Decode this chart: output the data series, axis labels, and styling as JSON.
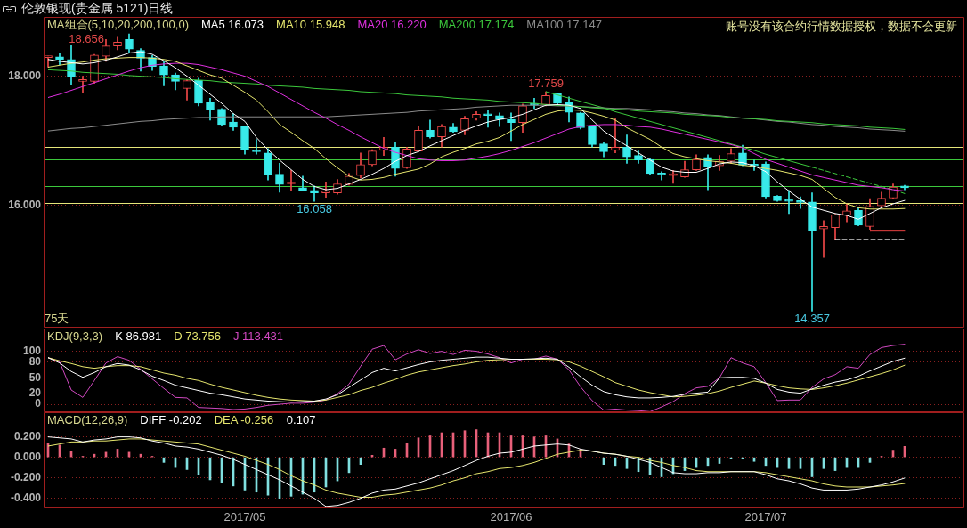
{
  "chart_data": [
    {
      "type": "candlestick",
      "title": "伦敦银现(贵金属 5121)日线",
      "legend_title": "MA组合(5,10,20,200,100,0)",
      "legend": "top left",
      "categories": [
        null,
        null,
        null,
        null,
        null,
        null,
        null,
        null,
        null,
        null,
        null,
        null,
        null,
        null,
        null,
        null,
        null,
        "2017/05",
        null,
        null,
        null,
        null,
        null,
        null,
        null,
        null,
        null,
        null,
        null,
        null,
        null,
        null,
        null,
        null,
        null,
        null,
        null,
        null,
        null,
        null,
        "2017/06",
        null,
        null,
        null,
        null,
        null,
        null,
        null,
        null,
        null,
        null,
        null,
        null,
        null,
        null,
        null,
        null,
        null,
        null,
        null,
        null,
        null,
        "2017/07",
        null,
        null,
        null,
        null,
        null,
        null,
        null,
        null,
        null,
        null,
        null,
        null
      ],
      "ohlc": [
        [
          18.29,
          18.31,
          18.14,
          18.3
        ],
        [
          18.3,
          18.35,
          18.18,
          18.26
        ],
        [
          18.26,
          18.48,
          17.87,
          17.99
        ],
        [
          17.92,
          18.0,
          17.75,
          17.93
        ],
        [
          17.92,
          18.34,
          17.89,
          18.33
        ],
        [
          18.31,
          18.57,
          18.23,
          18.47
        ],
        [
          18.47,
          18.62,
          18.41,
          18.53
        ],
        [
          18.57,
          18.656,
          18.37,
          18.42
        ],
        [
          18.4,
          18.43,
          18.08,
          18.28
        ],
        [
          18.29,
          18.32,
          18.09,
          18.15
        ],
        [
          18.16,
          18.23,
          17.85,
          18.02
        ],
        [
          18.02,
          18.05,
          17.79,
          17.92
        ],
        [
          17.81,
          17.95,
          17.63,
          17.93
        ],
        [
          17.94,
          17.97,
          17.54,
          17.58
        ],
        [
          17.6,
          17.66,
          17.32,
          17.48
        ],
        [
          17.49,
          17.5,
          17.24,
          17.25
        ],
        [
          17.29,
          17.42,
          17.16,
          17.21
        ],
        [
          17.22,
          17.23,
          16.79,
          16.86
        ],
        [
          16.85,
          17.02,
          16.79,
          16.83
        ],
        [
          16.81,
          16.88,
          16.39,
          16.47
        ],
        [
          16.48,
          16.65,
          16.2,
          16.32
        ],
        [
          16.33,
          16.54,
          16.22,
          16.34
        ],
        [
          16.27,
          16.45,
          16.22,
          16.23
        ],
        [
          16.23,
          16.3,
          16.058,
          16.19
        ],
        [
          16.19,
          16.36,
          16.12,
          16.2
        ],
        [
          16.19,
          16.4,
          16.17,
          16.33
        ],
        [
          16.32,
          16.49,
          16.31,
          16.45
        ],
        [
          16.46,
          16.81,
          16.42,
          16.63
        ],
        [
          16.63,
          16.86,
          16.61,
          16.84
        ],
        [
          16.85,
          17.05,
          16.77,
          16.9
        ],
        [
          16.9,
          16.97,
          16.45,
          16.57
        ],
        [
          16.58,
          16.9,
          16.57,
          16.87
        ],
        [
          16.84,
          17.22,
          16.83,
          17.16
        ],
        [
          17.16,
          17.32,
          17.04,
          17.06
        ],
        [
          17.06,
          17.25,
          16.9,
          17.22
        ],
        [
          17.21,
          17.27,
          17.13,
          17.14
        ],
        [
          17.16,
          17.38,
          17.09,
          17.34
        ],
        [
          17.35,
          17.45,
          17.32,
          17.41
        ],
        [
          17.41,
          17.48,
          17.21,
          17.39
        ],
        [
          17.39,
          17.43,
          17.22,
          17.33
        ],
        [
          17.33,
          17.43,
          17.0,
          17.28
        ],
        [
          17.28,
          17.57,
          17.13,
          17.54
        ],
        [
          17.56,
          17.66,
          17.5,
          17.55
        ],
        [
          17.56,
          17.759,
          17.54,
          17.7
        ],
        [
          17.73,
          17.74,
          17.57,
          17.58
        ],
        [
          17.59,
          17.68,
          17.29,
          17.44
        ],
        [
          17.43,
          17.44,
          17.18,
          17.2
        ],
        [
          17.22,
          17.23,
          16.9,
          16.94
        ],
        [
          16.95,
          16.98,
          16.75,
          16.83
        ],
        [
          16.85,
          17.34,
          16.81,
          16.9
        ],
        [
          16.9,
          17.09,
          16.65,
          16.75
        ],
        [
          16.77,
          16.84,
          16.65,
          16.7
        ],
        [
          16.71,
          16.72,
          16.47,
          16.49
        ],
        [
          16.48,
          16.52,
          16.39,
          16.47
        ],
        [
          16.46,
          16.54,
          16.34,
          16.47
        ],
        [
          16.44,
          16.68,
          16.43,
          16.55
        ],
        [
          16.55,
          16.78,
          16.54,
          16.71
        ],
        [
          16.74,
          16.78,
          16.24,
          16.6
        ],
        [
          16.61,
          16.77,
          16.54,
          16.68
        ],
        [
          16.68,
          16.88,
          16.65,
          16.8
        ],
        [
          16.81,
          16.93,
          16.61,
          16.62
        ],
        [
          16.63,
          16.7,
          16.54,
          16.61
        ],
        [
          16.64,
          16.67,
          16.11,
          16.13
        ],
        [
          16.14,
          16.15,
          16.06,
          16.07
        ],
        [
          16.07,
          16.23,
          15.87,
          16.06
        ],
        [
          16.07,
          16.13,
          15.95,
          16.04
        ],
        [
          16.05,
          16.19,
          14.357,
          15.61
        ],
        [
          15.63,
          15.76,
          15.19,
          15.67
        ],
        [
          15.65,
          15.86,
          15.47,
          15.85
        ],
        [
          15.84,
          16.02,
          15.74,
          15.91
        ],
        [
          15.92,
          15.97,
          15.68,
          15.69
        ],
        [
          15.67,
          16.1,
          15.625,
          15.98
        ],
        [
          15.99,
          16.2,
          15.97,
          16.11
        ],
        [
          16.11,
          16.33,
          16.1,
          16.28
        ],
        [
          16.3,
          16.31,
          16.24,
          16.27
        ]
      ],
      "colors": [
        "#f04848",
        "#38eaea",
        "#38eaea",
        "#f04848",
        "#f04848",
        "#f04848",
        "#f04848",
        "#38eaea",
        "#38eaea",
        "#38eaea",
        "#38eaea",
        "#38eaea",
        "#f04848",
        "#38eaea",
        "#38eaea",
        "#38eaea",
        "#38eaea",
        "#38eaea",
        "#38eaea",
        "#38eaea",
        "#38eaea",
        "#f04848",
        "#38eaea",
        "#38eaea",
        "#f04848",
        "#f04848",
        "#f04848",
        "#f04848",
        "#f04848",
        "#f04848",
        "#38eaea",
        "#f04848",
        "#f04848",
        "#38eaea",
        "#f04848",
        "#38eaea",
        "#f04848",
        "#f04848",
        "#38eaea",
        "#38eaea",
        "#38eaea",
        "#f04848",
        "#38eaea",
        "#f04848",
        "#38eaea",
        "#38eaea",
        "#38eaea",
        "#38eaea",
        "#38eaea",
        "#f04848",
        "#38eaea",
        "#38eaea",
        "#38eaea",
        "#38eaea",
        "#f04848",
        "#f04848",
        "#f04848",
        "#38eaea",
        "#f04848",
        "#f04848",
        "#38eaea",
        "#38eaea",
        "#38eaea",
        "#38eaea",
        "#38eaea",
        "#38eaea",
        "#38eaea",
        "#f04848",
        "#f04848",
        "#f04848",
        "#38eaea",
        "#f04848",
        "#f04848",
        "#f04848",
        "#38eaea"
      ],
      "series": [
        {
          "type": "line",
          "name": "MA5 16.073",
          "color": "#ffffff",
          "values": [
            18.26,
            18.23,
            18.21,
            18.19,
            18.21,
            18.25,
            18.3,
            18.36,
            18.38,
            18.34,
            18.24,
            18.13,
            18.0,
            17.86,
            17.72,
            17.58,
            17.42,
            17.3,
            17.05,
            16.86,
            16.7,
            16.55,
            16.4,
            16.29,
            16.24,
            16.26,
            16.33,
            16.4,
            16.48,
            16.57,
            16.68,
            16.77,
            16.83,
            16.92,
            17.0,
            17.08,
            17.16,
            17.23,
            17.29,
            17.33,
            17.36,
            17.41,
            17.48,
            17.55,
            17.56,
            17.55,
            17.5,
            17.32,
            17.15,
            17.03,
            16.92,
            16.81,
            16.7,
            16.59,
            16.53,
            16.51,
            16.51,
            16.57,
            16.64,
            16.67,
            16.66,
            16.61,
            16.52,
            16.36,
            16.22,
            16.09,
            15.97,
            15.92,
            15.87,
            15.84,
            15.78,
            15.87,
            15.96,
            16.02,
            16.073
          ]
        },
        {
          "type": "line",
          "name": "MA10 15.948",
          "color": "#e6e66e",
          "values": [
            18.14,
            18.17,
            18.2,
            18.22,
            18.25,
            18.27,
            18.28,
            18.29,
            18.29,
            18.28,
            18.26,
            18.23,
            18.16,
            18.09,
            18.02,
            17.97,
            17.86,
            17.75,
            17.63,
            17.45,
            17.25,
            17.13,
            17.0,
            16.88,
            16.72,
            16.58,
            16.45,
            16.39,
            16.4,
            16.43,
            16.48,
            16.52,
            16.56,
            16.64,
            16.75,
            16.82,
            16.88,
            16.95,
            16.99,
            17.05,
            17.15,
            17.25,
            17.33,
            17.41,
            17.46,
            17.48,
            17.47,
            17.43,
            17.38,
            17.32,
            17.2,
            17.11,
            17.02,
            16.9,
            16.8,
            16.75,
            16.72,
            16.69,
            16.67,
            16.65,
            16.62,
            16.6,
            16.57,
            16.54,
            16.5,
            16.46,
            16.4,
            16.26,
            16.12,
            16.02,
            15.96,
            15.94,
            15.94,
            15.94,
            15.948
          ]
        },
        {
          "type": "line",
          "name": "MA20 16.220",
          "color": "#e030e0",
          "values": [
            17.67,
            17.72,
            17.78,
            17.84,
            17.9,
            17.96,
            18.02,
            18.08,
            18.13,
            18.17,
            18.19,
            18.2,
            18.2,
            18.18,
            18.14,
            18.1,
            18.05,
            18.0,
            17.92,
            17.84,
            17.74,
            17.64,
            17.54,
            17.44,
            17.35,
            17.25,
            17.16,
            17.06,
            16.97,
            16.88,
            16.82,
            16.77,
            16.72,
            16.7,
            16.69,
            16.69,
            16.7,
            16.73,
            16.76,
            16.8,
            16.85,
            16.91,
            16.97,
            17.04,
            17.11,
            17.18,
            17.22,
            17.24,
            17.25,
            17.25,
            17.24,
            17.22,
            17.21,
            17.18,
            17.14,
            17.1,
            17.06,
            17.02,
            16.98,
            16.94,
            16.89,
            16.8,
            16.71,
            16.65,
            16.59,
            16.53,
            16.47,
            16.43,
            16.39,
            16.35,
            16.31,
            16.29,
            16.27,
            16.24,
            16.22
          ]
        },
        {
          "type": "line",
          "name": "MA200 17.174",
          "color": "#3cc83c",
          "values": [
            18.1,
            18.09,
            18.08,
            18.06,
            18.05,
            18.04,
            18.03,
            18.01,
            18.0,
            17.99,
            17.98,
            17.96,
            17.95,
            17.94,
            17.93,
            17.91,
            17.9,
            17.89,
            17.88,
            17.86,
            17.85,
            17.84,
            17.83,
            17.81,
            17.8,
            17.79,
            17.78,
            17.76,
            17.75,
            17.74,
            17.73,
            17.71,
            17.7,
            17.69,
            17.68,
            17.66,
            17.65,
            17.64,
            17.63,
            17.61,
            17.6,
            17.59,
            17.58,
            17.56,
            17.55,
            17.54,
            17.53,
            17.51,
            17.5,
            17.49,
            17.48,
            17.46,
            17.45,
            17.44,
            17.43,
            17.41,
            17.4,
            17.39,
            17.38,
            17.36,
            17.35,
            17.34,
            17.33,
            17.31,
            17.3,
            17.29,
            17.28,
            17.26,
            17.25,
            17.24,
            17.23,
            17.21,
            17.2,
            17.19,
            17.174
          ]
        },
        {
          "type": "line",
          "name": "MA100 17.147",
          "color": "#8c8c8c",
          "values": [
            17.15,
            17.17,
            17.19,
            17.2,
            17.22,
            17.24,
            17.26,
            17.28,
            17.3,
            17.31,
            17.33,
            17.34,
            17.35,
            17.36,
            17.36,
            17.37,
            17.37,
            17.37,
            17.37,
            17.37,
            17.37,
            17.37,
            17.37,
            17.37,
            17.37,
            17.38,
            17.39,
            17.4,
            17.41,
            17.42,
            17.43,
            17.44,
            17.46,
            17.47,
            17.48,
            17.49,
            17.5,
            17.52,
            17.53,
            17.54,
            17.55,
            17.55,
            17.55,
            17.55,
            17.54,
            17.54,
            17.53,
            17.52,
            17.51,
            17.5,
            17.5,
            17.49,
            17.48,
            17.46,
            17.45,
            17.43,
            17.42,
            17.4,
            17.39,
            17.37,
            17.35,
            17.34,
            17.32,
            17.3,
            17.29,
            17.27,
            17.25,
            17.24,
            17.22,
            17.21,
            17.2,
            17.18,
            17.17,
            17.16,
            17.147
          ]
        },
        {
          "type": "line",
          "color": "#3cc83c",
          "values": [
            null,
            null,
            null,
            null,
            null,
            null,
            null,
            null,
            null,
            null,
            null,
            null,
            null,
            null,
            null,
            null,
            null,
            null,
            null,
            null,
            null,
            null,
            null,
            null,
            null,
            null,
            null,
            null,
            null,
            null,
            null,
            null,
            null,
            null,
            null,
            null,
            null,
            null,
            null,
            null,
            null,
            null,
            null,
            17.76,
            17.71,
            17.66,
            17.61,
            17.56,
            17.51,
            17.45,
            17.4,
            17.35,
            17.3,
            17.25,
            17.2,
            17.15,
            17.1,
            17.05,
            17.0,
            16.95,
            16.9,
            16.85,
            16.79,
            16.74,
            16.69,
            16.64,
            16.59,
            null,
            null,
            null,
            null,
            null,
            null,
            null,
            null
          ]
        },
        {
          "type": "line",
          "color": "#3cc83c",
          "line_style": "dashed",
          "values": [
            null,
            null,
            null,
            null,
            null,
            null,
            null,
            null,
            null,
            null,
            null,
            null,
            null,
            null,
            null,
            null,
            null,
            null,
            null,
            null,
            null,
            null,
            null,
            null,
            null,
            null,
            null,
            null,
            null,
            null,
            null,
            null,
            null,
            null,
            null,
            null,
            null,
            null,
            null,
            null,
            null,
            null,
            null,
            null,
            null,
            null,
            null,
            null,
            null,
            null,
            null,
            null,
            null,
            null,
            null,
            null,
            null,
            null,
            null,
            null,
            null,
            null,
            null,
            null,
            null,
            null,
            16.59,
            16.54,
            16.49,
            16.44,
            16.39,
            16.34,
            16.29,
            16.24,
            16.18
          ]
        },
        {
          "type": "line",
          "color": "#e84040",
          "values": [
            null,
            null,
            null,
            null,
            null,
            null,
            null,
            null,
            null,
            null,
            null,
            null,
            null,
            null,
            null,
            null,
            null,
            null,
            null,
            null,
            null,
            null,
            null,
            null,
            null,
            null,
            null,
            null,
            null,
            null,
            null,
            null,
            null,
            null,
            null,
            null,
            null,
            null,
            null,
            null,
            null,
            null,
            null,
            null,
            null,
            null,
            null,
            null,
            null,
            null,
            null,
            null,
            null,
            null,
            null,
            null,
            null,
            null,
            null,
            null,
            null,
            null,
            null,
            null,
            null,
            null,
            null,
            null,
            null,
            null,
            null,
            15.61,
            15.61,
            15.61,
            15.61
          ]
        },
        {
          "type": "line",
          "color": "#e0e0e0",
          "line_style": "dashed",
          "values": [
            null,
            null,
            null,
            null,
            null,
            null,
            null,
            null,
            null,
            null,
            null,
            null,
            null,
            null,
            null,
            null,
            null,
            null,
            null,
            null,
            null,
            null,
            null,
            null,
            null,
            null,
            null,
            null,
            null,
            null,
            null,
            null,
            null,
            null,
            null,
            null,
            null,
            null,
            null,
            null,
            null,
            null,
            null,
            null,
            null,
            null,
            null,
            null,
            null,
            null,
            null,
            null,
            null,
            null,
            null,
            null,
            null,
            null,
            null,
            null,
            null,
            null,
            null,
            null,
            null,
            null,
            null,
            null,
            15.47,
            15.47,
            15.47,
            15.47,
            15.47,
            15.47,
            15.47
          ]
        }
      ],
      "ylim": [
        14.1,
        18.92
      ],
      "yticks": [
        {
          "value": 16,
          "label": "16.000"
        },
        {
          "value": 18,
          "label": "18.000"
        }
      ],
      "grid": "y",
      "tick_labels": "y",
      "ref_lines": [
        {
          "axis": "y",
          "value": 16.91,
          "color": "#e6e67a"
        },
        {
          "axis": "y",
          "value": 16.71,
          "color": "#3cc83c"
        },
        {
          "axis": "y",
          "value": 16.29,
          "color": "#3cc83c"
        },
        {
          "axis": "y",
          "value": 16.04,
          "color": "#e6e67a"
        }
      ],
      "annotations": [
        "账号没有该合约行情数据授权，数据不会更新",
        "75天",
        "18.656",
        {
          "text": "17.759",
          "y": 17.759
        },
        {
          "text": "16.058",
          "y": 16.058
        },
        {
          "text": "14.357",
          "y": 14.357
        }
      ]
    },
    {
      "type": "line",
      "legend_title": "KDJ(9,3,3)",
      "legend": "top left",
      "categories": [
        null,
        null,
        null,
        null,
        null,
        null,
        null,
        null,
        null,
        null,
        null,
        null,
        null,
        null,
        null,
        null,
        null,
        "2017/05",
        null,
        null,
        null,
        null,
        null,
        null,
        null,
        null,
        null,
        null,
        null,
        null,
        null,
        null,
        null,
        null,
        null,
        null,
        null,
        null,
        null,
        null,
        "2017/06",
        null,
        null,
        null,
        null,
        null,
        null,
        null,
        null,
        null,
        null,
        null,
        null,
        null,
        null,
        null,
        null,
        null,
        null,
        null,
        null,
        null,
        "2017/07",
        null,
        null,
        null,
        null,
        null,
        null,
        null,
        null,
        null,
        null,
        null,
        null
      ],
      "series": [
        {
          "name": "K 86.981",
          "color": "#ffffff",
          "values": [
            88,
            78,
            62,
            51,
            60,
            71,
            77,
            74,
            65,
            53,
            45,
            36,
            31,
            26,
            21,
            18,
            14,
            10,
            8,
            6,
            5,
            4,
            5,
            6,
            10,
            18,
            32,
            46,
            60,
            68,
            63,
            69,
            75,
            80,
            83,
            85,
            87,
            89,
            89,
            87,
            85,
            85,
            86,
            87,
            85,
            70,
            52,
            36,
            24,
            18,
            14,
            12,
            12,
            13,
            15,
            19,
            21,
            23,
            50,
            51,
            51,
            49,
            40,
            28,
            23,
            21,
            29,
            36,
            42,
            46,
            53,
            63,
            72,
            81,
            86.981
          ]
        },
        {
          "name": "D 73.756",
          "color": "#e6e66e",
          "values": [
            88,
            82,
            77,
            71,
            68,
            71,
            73,
            73,
            71,
            65,
            59,
            55,
            49,
            45,
            38,
            32,
            27,
            22,
            17,
            13,
            10,
            8,
            7,
            6,
            8,
            13,
            18,
            26,
            32,
            40,
            47,
            55,
            61,
            65,
            69,
            73,
            76,
            80,
            83,
            84,
            85,
            85,
            85,
            85,
            84,
            80,
            72,
            62,
            52,
            41,
            34,
            27,
            22,
            18,
            14,
            15,
            17,
            20,
            25,
            32,
            38,
            44,
            40,
            35,
            31,
            29,
            28,
            31,
            35,
            40,
            46,
            52,
            58,
            65,
            73.756
          ]
        },
        {
          "name": "J 113.431",
          "color": "#d048c0",
          "values": [
            88,
            80,
            27,
            13,
            45,
            78,
            90,
            83,
            66,
            48,
            30,
            13,
            12,
            -6,
            -7,
            -8,
            -10,
            -9,
            -6,
            -2,
            0,
            2,
            2,
            4,
            8,
            20,
            38,
            72,
            104,
            111,
            84,
            95,
            103,
            96,
            100,
            94,
            102,
            100,
            95,
            88,
            78,
            85,
            85,
            91,
            85,
            65,
            33,
            7,
            -11,
            -9,
            -11,
            -12,
            -14,
            -5,
            5,
            20,
            31,
            34,
            50,
            88,
            78,
            71,
            41,
            7,
            8,
            8,
            32,
            48,
            56,
            71,
            68,
            94,
            107,
            111,
            113.431
          ]
        }
      ],
      "ylim": [
        -15,
        143
      ],
      "yticks": [
        0,
        20,
        50,
        80,
        100
      ],
      "grid": "y",
      "tick_labels": "y"
    },
    {
      "type": "bar",
      "legend_title": "MACD(12,26,9)",
      "legend": "top left",
      "categories": [
        null,
        null,
        null,
        null,
        null,
        null,
        null,
        null,
        null,
        null,
        null,
        null,
        null,
        null,
        null,
        null,
        null,
        "2017/05",
        null,
        null,
        null,
        null,
        null,
        null,
        null,
        null,
        null,
        null,
        null,
        null,
        null,
        null,
        null,
        null,
        null,
        null,
        null,
        null,
        null,
        null,
        "2017/06",
        null,
        null,
        null,
        null,
        null,
        null,
        null,
        null,
        null,
        null,
        null,
        null,
        null,
        null,
        null,
        null,
        null,
        null,
        null,
        null,
        null,
        "2017/07",
        null,
        null,
        null,
        null,
        null,
        null,
        null,
        null,
        null,
        null,
        null,
        null
      ],
      "series": [
        {
          "values": [
            0.14,
            0.12,
            0.06,
            0.01,
            0.03,
            0.05,
            0.08,
            0.05,
            0.03,
            0.01,
            -0.05,
            -0.1,
            -0.12,
            -0.17,
            -0.22,
            -0.25,
            -0.28,
            -0.32,
            -0.34,
            -0.37,
            -0.4,
            -0.38,
            -0.36,
            -0.34,
            -0.29,
            -0.23,
            -0.15,
            -0.07,
            0.02,
            0.09,
            0.08,
            0.14,
            0.19,
            0.21,
            0.24,
            0.24,
            0.26,
            0.27,
            0.24,
            0.24,
            0.21,
            0.21,
            0.2,
            0.21,
            0.18,
            0.13,
            0.08,
            null,
            -0.07,
            -0.08,
            -0.11,
            -0.14,
            -0.17,
            -0.19,
            -0.16,
            -0.13,
            -0.1,
            -0.08,
            -0.06,
            -0.01,
            -0.01,
            -0.04,
            -0.08,
            -0.1,
            -0.11,
            -0.11,
            -0.19,
            -0.11,
            -0.13,
            -0.1,
            -0.1,
            -0.05,
            0.01,
            0.07,
            0.107
          ],
          "colors": [
            "#e8607a",
            "#e8607a",
            "#e8607a",
            "#e8607a",
            "#e8607a",
            "#e8607a",
            "#e8607a",
            "#e8607a",
            "#e8607a",
            "#e8607a",
            "#80e0e0",
            "#80e0e0",
            "#80e0e0",
            "#80e0e0",
            "#80e0e0",
            "#80e0e0",
            "#80e0e0",
            "#80e0e0",
            "#80e0e0",
            "#80e0e0",
            "#80e0e0",
            "#80e0e0",
            "#80e0e0",
            "#80e0e0",
            "#80e0e0",
            "#80e0e0",
            "#80e0e0",
            "#80e0e0",
            "#e8607a",
            "#e8607a",
            "#e8607a",
            "#e8607a",
            "#e8607a",
            "#e8607a",
            "#e8607a",
            "#e8607a",
            "#e8607a",
            "#e8607a",
            "#e8607a",
            "#e8607a",
            "#e8607a",
            "#e8607a",
            "#e8607a",
            "#e8607a",
            "#e8607a",
            "#e8607a",
            "#e8607a",
            "#e8607a",
            "#80e0e0",
            "#80e0e0",
            "#80e0e0",
            "#80e0e0",
            "#80e0e0",
            "#80e0e0",
            "#80e0e0",
            "#80e0e0",
            "#80e0e0",
            "#80e0e0",
            "#80e0e0",
            "#80e0e0",
            "#80e0e0",
            "#80e0e0",
            "#80e0e0",
            "#80e0e0",
            "#80e0e0",
            "#80e0e0",
            "#80e0e0",
            "#80e0e0",
            "#80e0e0",
            "#80e0e0",
            "#80e0e0",
            "#80e0e0",
            "#e8607a",
            "#e8607a",
            "#e8607a"
          ]
        },
        {
          "type": "line",
          "name": "DIFF -0.202",
          "color": "#ffffff",
          "values": [
            0.2,
            0.19,
            0.18,
            0.15,
            0.17,
            0.18,
            0.2,
            0.2,
            0.19,
            0.16,
            0.14,
            0.11,
            0.1,
            0.08,
            0.05,
            0.02,
            -0.02,
            -0.07,
            -0.12,
            -0.17,
            -0.22,
            -0.28,
            -0.34,
            -0.4,
            -0.48,
            -0.47,
            -0.44,
            -0.4,
            -0.35,
            -0.32,
            -0.31,
            -0.28,
            -0.25,
            -0.21,
            -0.17,
            -0.13,
            -0.08,
            -0.03,
            0.01,
            0.04,
            0.05,
            0.08,
            0.11,
            0.12,
            0.13,
            0.12,
            0.08,
            0.06,
            0.04,
            0.03,
            0.01,
            -0.02,
            -0.05,
            -0.1,
            -0.15,
            -0.16,
            -0.16,
            -0.15,
            -0.15,
            -0.14,
            -0.14,
            -0.14,
            -0.17,
            -0.21,
            -0.23,
            -0.26,
            -0.3,
            -0.32,
            -0.32,
            -0.32,
            -0.31,
            -0.29,
            -0.27,
            -0.24,
            -0.202
          ]
        },
        {
          "type": "line",
          "name": "DEA -0.256",
          "color": "#e6e66e",
          "values": [
            0.11,
            0.13,
            0.15,
            0.15,
            0.16,
            0.16,
            0.17,
            0.18,
            0.18,
            0.17,
            0.16,
            0.15,
            0.14,
            0.13,
            0.1,
            0.07,
            0.04,
            0.01,
            -0.03,
            -0.07,
            -0.12,
            -0.18,
            -0.23,
            -0.27,
            -0.32,
            -0.35,
            -0.37,
            -0.39,
            -0.39,
            -0.37,
            -0.36,
            -0.34,
            -0.32,
            -0.3,
            -0.27,
            -0.23,
            -0.2,
            -0.16,
            -0.14,
            -0.11,
            -0.1,
            -0.08,
            -0.05,
            -0.01,
            0.03,
            0.05,
            0.07,
            0.06,
            0.04,
            0.03,
            0.01,
            0,
            -0.03,
            -0.05,
            -0.08,
            -0.1,
            -0.13,
            -0.14,
            -0.14,
            -0.14,
            -0.14,
            -0.14,
            -0.15,
            -0.17,
            -0.19,
            -0.21,
            -0.23,
            -0.26,
            -0.28,
            -0.29,
            -0.29,
            -0.29,
            -0.28,
            -0.27,
            -0.256
          ]
        }
      ],
      "ylim": [
        -0.49,
        0.44
      ],
      "yticks": [
        {
          "value": -0.4,
          "label": "-0.400"
        },
        {
          "value": -0.2,
          "label": "-0.200"
        },
        {
          "value": 0,
          "label": "0.000"
        },
        {
          "value": 0.2,
          "label": "0.200"
        }
      ],
      "grid": "y",
      "annotations": [
        "0.107"
      ]
    }
  ]
}
